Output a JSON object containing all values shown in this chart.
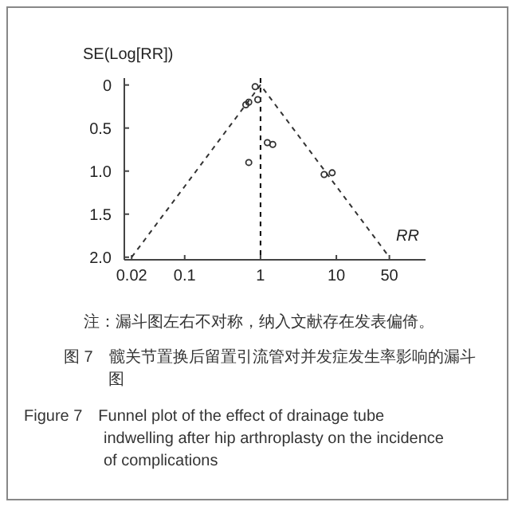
{
  "chart_data": {
    "type": "scatter",
    "xlabel": "RR",
    "ylabel": "SE(Log[RR])",
    "log": "x",
    "xlim": [
      0.016,
      150
    ],
    "xticks": [
      0.02,
      0.1,
      1,
      10,
      50
    ],
    "ylim": [
      2.03,
      -0.08
    ],
    "yticks": [
      0,
      0.5,
      {
        "value": 1,
        "label": "1.0"
      },
      1.5,
      {
        "value": 2,
        "label": "2.0"
      }
    ],
    "series": [
      {
        "type": "scatter",
        "marker": "circle",
        "color": "#333333",
        "x": [
          0.85,
          0.92,
          0.7,
          0.64,
          1.23,
          1.45,
          0.7,
          6.9,
          8.8
        ],
        "values": [
          0.02,
          0.17,
          0.2,
          0.23,
          0.67,
          0.69,
          0.9,
          1.04,
          1.02
        ]
      },
      {
        "type": "line",
        "line_style": "dashed",
        "color": "#333333",
        "x": [
          0.02,
          1,
          50
        ],
        "values": [
          2,
          0,
          2
        ]
      }
    ],
    "ref_lines": [
      {
        "axis": "x",
        "value": 1,
        "line_style": "dashed",
        "color": "#000000"
      }
    ],
    "annotations": [
      "注：漏斗图左右不对称，纳入文献存在发表偏倚。",
      "图 7　髋关节置换后留置引流管对并发症发生率影响的漏斗图",
      "Figure 7　Funnel plot of the effect of drainage tube indwelling after hip arthroplasty on the incidence of complications"
    ]
  }
}
